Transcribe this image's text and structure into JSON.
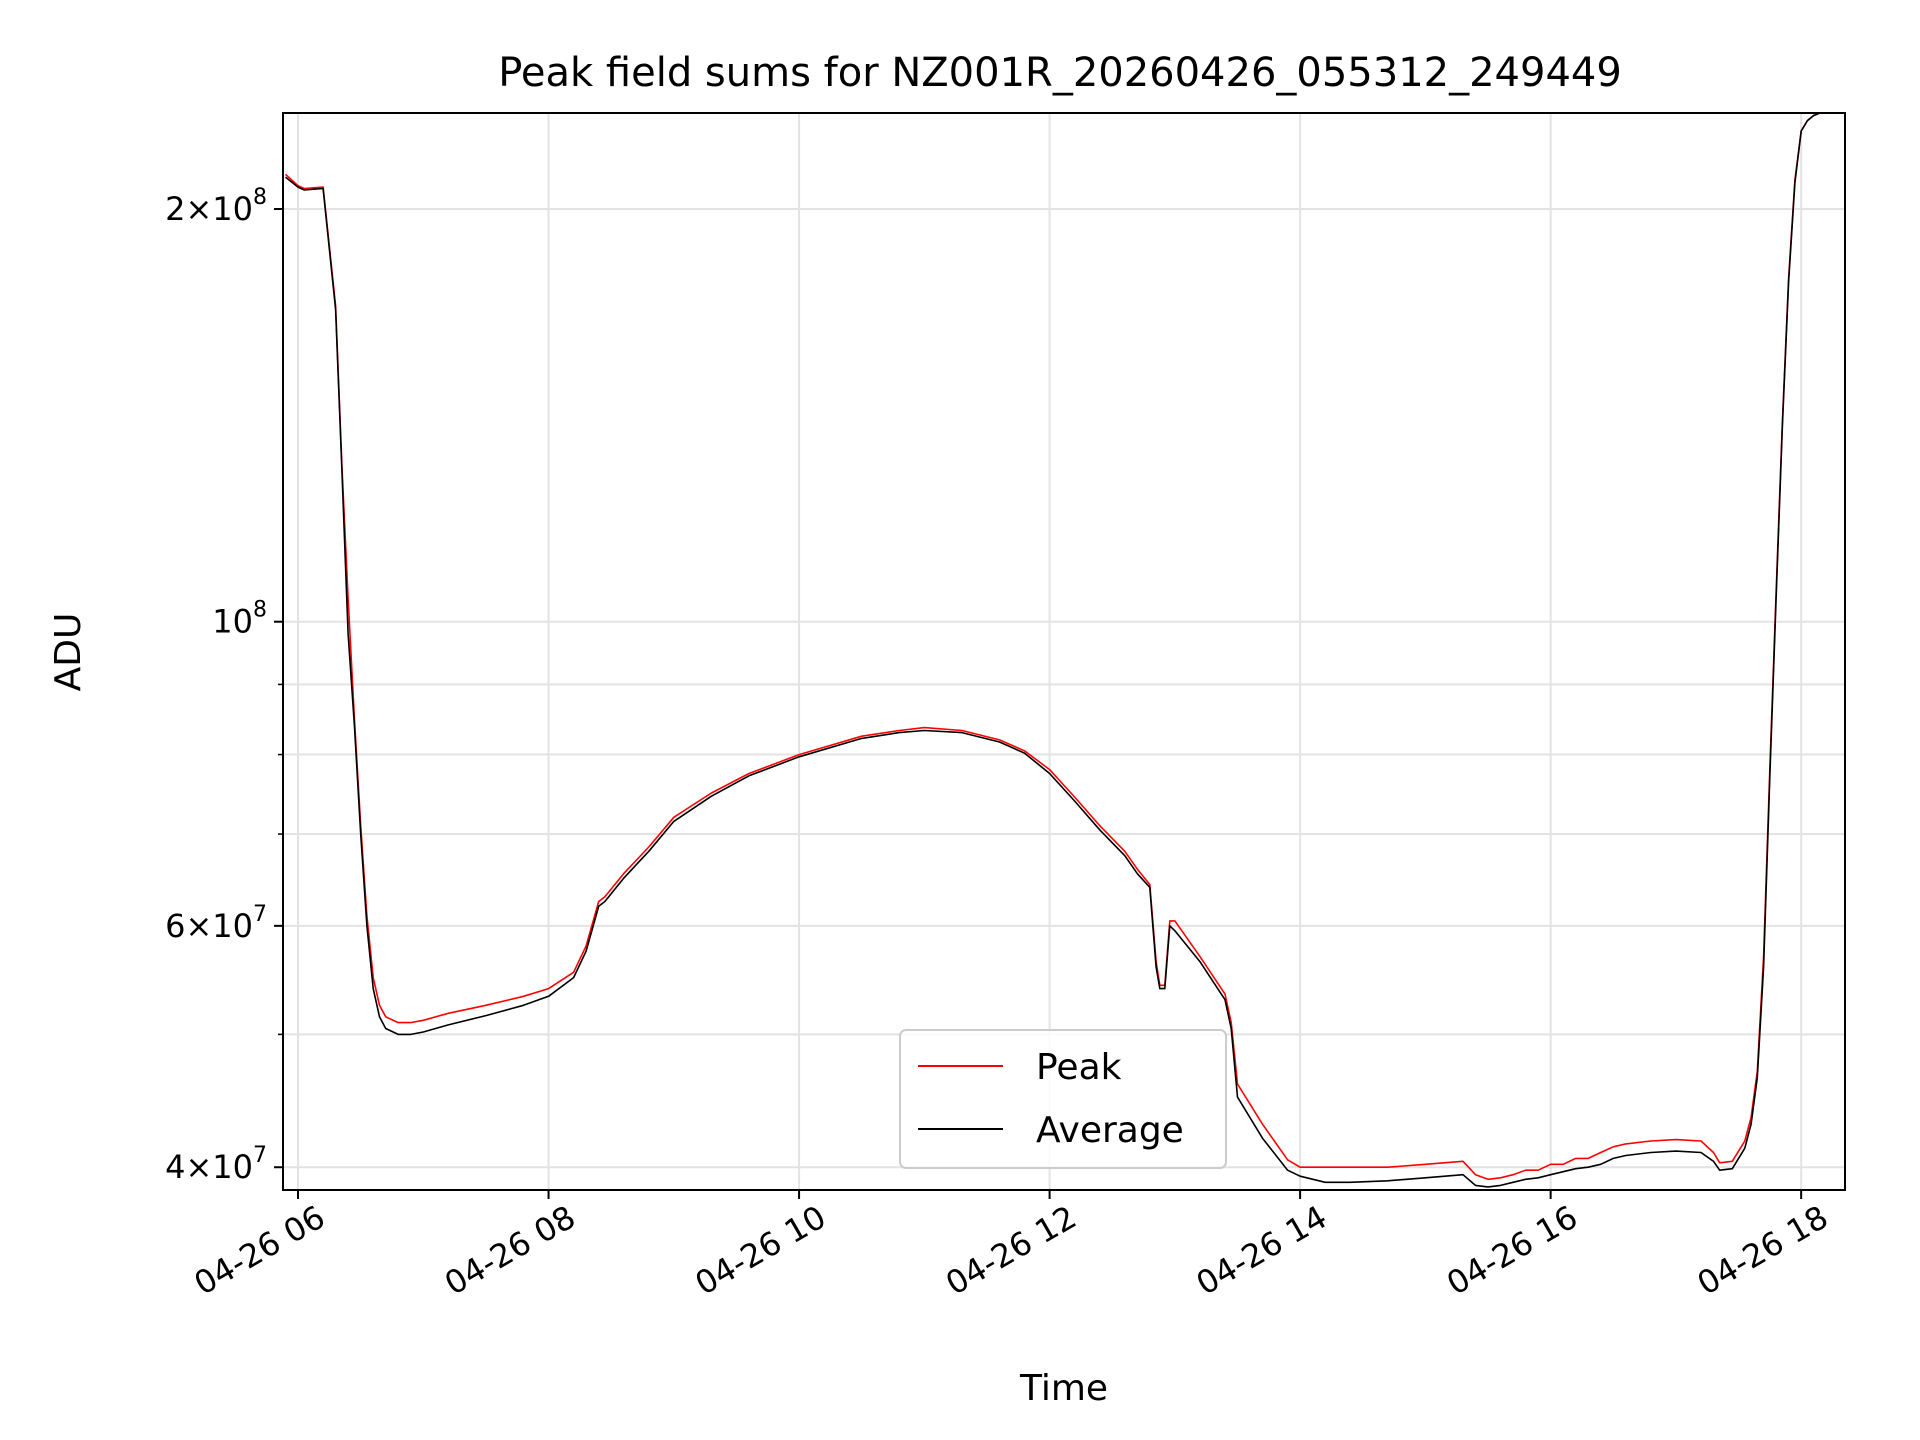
{
  "chart_data": {
    "type": "line",
    "title": "Peak field sums for NZ001R_20260426_055312_249449",
    "xlabel": "Time",
    "ylabel": "ADU",
    "yscale": "log",
    "xlim": [
      5.88,
      18.35
    ],
    "ylim": [
      38500000,
      235000000
    ],
    "grid": true,
    "legend_location": "lower-center",
    "x_unit": "hours on 2026-04-26",
    "x_ticks": [
      {
        "value": 6,
        "label": "04-26 06"
      },
      {
        "value": 8,
        "label": "04-26 08"
      },
      {
        "value": 10,
        "label": "04-26 10"
      },
      {
        "value": 12,
        "label": "04-26 12"
      },
      {
        "value": 14,
        "label": "04-26 14"
      },
      {
        "value": 16,
        "label": "04-26 16"
      },
      {
        "value": 18,
        "label": "04-26 18"
      }
    ],
    "y_major_ticks": [
      {
        "value": 40000000,
        "mantissa": "4",
        "exponent": "7"
      },
      {
        "value": 60000000,
        "mantissa": "6",
        "exponent": "7"
      },
      {
        "value": 100000000,
        "mantissa": "",
        "exponent": "8"
      },
      {
        "value": 200000000,
        "mantissa": "2",
        "exponent": "8"
      }
    ],
    "y_minor_ticks": [
      50000000,
      70000000,
      80000000,
      90000000
    ],
    "series": [
      {
        "name": "Peak",
        "color": "#ff0000",
        "x": [
          5.9,
          6.0,
          6.05,
          6.2,
          6.3,
          6.35,
          6.4,
          6.45,
          6.5,
          6.55,
          6.6,
          6.65,
          6.7,
          6.8,
          6.9,
          7.0,
          7.2,
          7.5,
          7.8,
          8.0,
          8.2,
          8.3,
          8.4,
          8.45,
          8.6,
          8.8,
          9.0,
          9.3,
          9.6,
          10.0,
          10.5,
          10.8,
          11.0,
          11.3,
          11.6,
          11.8,
          12.0,
          12.2,
          12.4,
          12.6,
          12.7,
          12.8,
          12.85,
          12.88,
          12.92,
          12.96,
          13.0,
          13.2,
          13.4,
          13.45,
          13.5,
          13.7,
          13.9,
          14.0,
          14.2,
          14.4,
          14.7,
          15.0,
          15.3,
          15.4,
          15.5,
          15.6,
          15.7,
          15.8,
          15.9,
          16.0,
          16.1,
          16.2,
          16.3,
          16.4,
          16.5,
          16.6,
          16.8,
          17.0,
          17.2,
          17.3,
          17.35,
          17.45,
          17.55,
          17.6,
          17.65,
          17.7,
          17.75,
          17.8,
          17.85,
          17.9,
          17.95,
          18.0,
          18.05,
          18.1,
          18.15,
          18.2,
          18.25,
          18.35
        ],
        "y": [
          212000000,
          208000000,
          207000000,
          207500000,
          170000000,
          130000000,
          104000000,
          85000000,
          71000000,
          61000000,
          55000000,
          52500000,
          51500000,
          51000000,
          51000000,
          51200000,
          51800000,
          52500000,
          53300000,
          54000000,
          55500000,
          58000000,
          62500000,
          63000000,
          65500000,
          68500000,
          72000000,
          75000000,
          77500000,
          80000000,
          82500000,
          83300000,
          83700000,
          83300000,
          82000000,
          80500000,
          78000000,
          74500000,
          71000000,
          68000000,
          66000000,
          64300000,
          56500000,
          54300000,
          54300000,
          60500000,
          60500000,
          57000000,
          53500000,
          51000000,
          46000000,
          43000000,
          40500000,
          40000000,
          40000000,
          40000000,
          40000000,
          40200000,
          40400000,
          39500000,
          39200000,
          39300000,
          39500000,
          39800000,
          39800000,
          40200000,
          40200000,
          40600000,
          40600000,
          41000000,
          41400000,
          41600000,
          41800000,
          41900000,
          41800000,
          41000000,
          40300000,
          40400000,
          41800000,
          43500000,
          47000000,
          57000000,
          78000000,
          105000000,
          140000000,
          178000000,
          210000000,
          228000000,
          232000000,
          234000000,
          235000000,
          235000000,
          235000000,
          235000000
        ]
      },
      {
        "name": "Average",
        "color": "#000000",
        "x": [
          5.9,
          6.0,
          6.05,
          6.2,
          6.3,
          6.35,
          6.4,
          6.45,
          6.5,
          6.55,
          6.6,
          6.65,
          6.7,
          6.8,
          6.9,
          7.0,
          7.2,
          7.5,
          7.8,
          8.0,
          8.2,
          8.3,
          8.4,
          8.45,
          8.6,
          8.8,
          9.0,
          9.3,
          9.6,
          10.0,
          10.5,
          10.8,
          11.0,
          11.3,
          11.6,
          11.8,
          12.0,
          12.2,
          12.4,
          12.6,
          12.7,
          12.8,
          12.85,
          12.88,
          12.92,
          12.96,
          13.0,
          13.2,
          13.4,
          13.45,
          13.5,
          13.7,
          13.9,
          14.0,
          14.2,
          14.4,
          14.7,
          15.0,
          15.3,
          15.4,
          15.5,
          15.6,
          15.7,
          15.8,
          15.9,
          16.0,
          16.1,
          16.2,
          16.3,
          16.4,
          16.5,
          16.6,
          16.8,
          17.0,
          17.2,
          17.3,
          17.35,
          17.45,
          17.55,
          17.6,
          17.65,
          17.7,
          17.75,
          17.8,
          17.85,
          17.9,
          17.95,
          18.0,
          18.05,
          18.1,
          18.15,
          18.2,
          18.25,
          18.35
        ],
        "y": [
          211000000,
          207500000,
          206500000,
          207000000,
          169000000,
          129000000,
          98000000,
          84000000,
          70000000,
          60000000,
          54000000,
          51500000,
          50500000,
          50000000,
          50000000,
          50200000,
          50800000,
          51600000,
          52500000,
          53300000,
          55000000,
          57500000,
          62000000,
          62500000,
          65000000,
          68000000,
          71500000,
          74600000,
          77200000,
          79700000,
          82200000,
          83000000,
          83300000,
          83000000,
          81700000,
          80200000,
          77500000,
          74000000,
          70500000,
          67500000,
          65500000,
          64000000,
          56000000,
          54000000,
          54000000,
          60000000,
          59500000,
          56500000,
          53000000,
          50500000,
          45000000,
          42000000,
          39800000,
          39400000,
          39000000,
          39000000,
          39100000,
          39300000,
          39500000,
          38800000,
          38700000,
          38800000,
          39000000,
          39200000,
          39300000,
          39500000,
          39700000,
          39900000,
          40000000,
          40200000,
          40600000,
          40800000,
          41000000,
          41100000,
          41000000,
          40400000,
          39800000,
          39900000,
          41300000,
          43000000,
          46500000,
          56000000,
          77000000,
          104000000,
          139000000,
          177000000,
          209000000,
          228000000,
          232000000,
          234000000,
          235000000,
          235000000,
          235000000,
          235000000
        ]
      }
    ]
  }
}
